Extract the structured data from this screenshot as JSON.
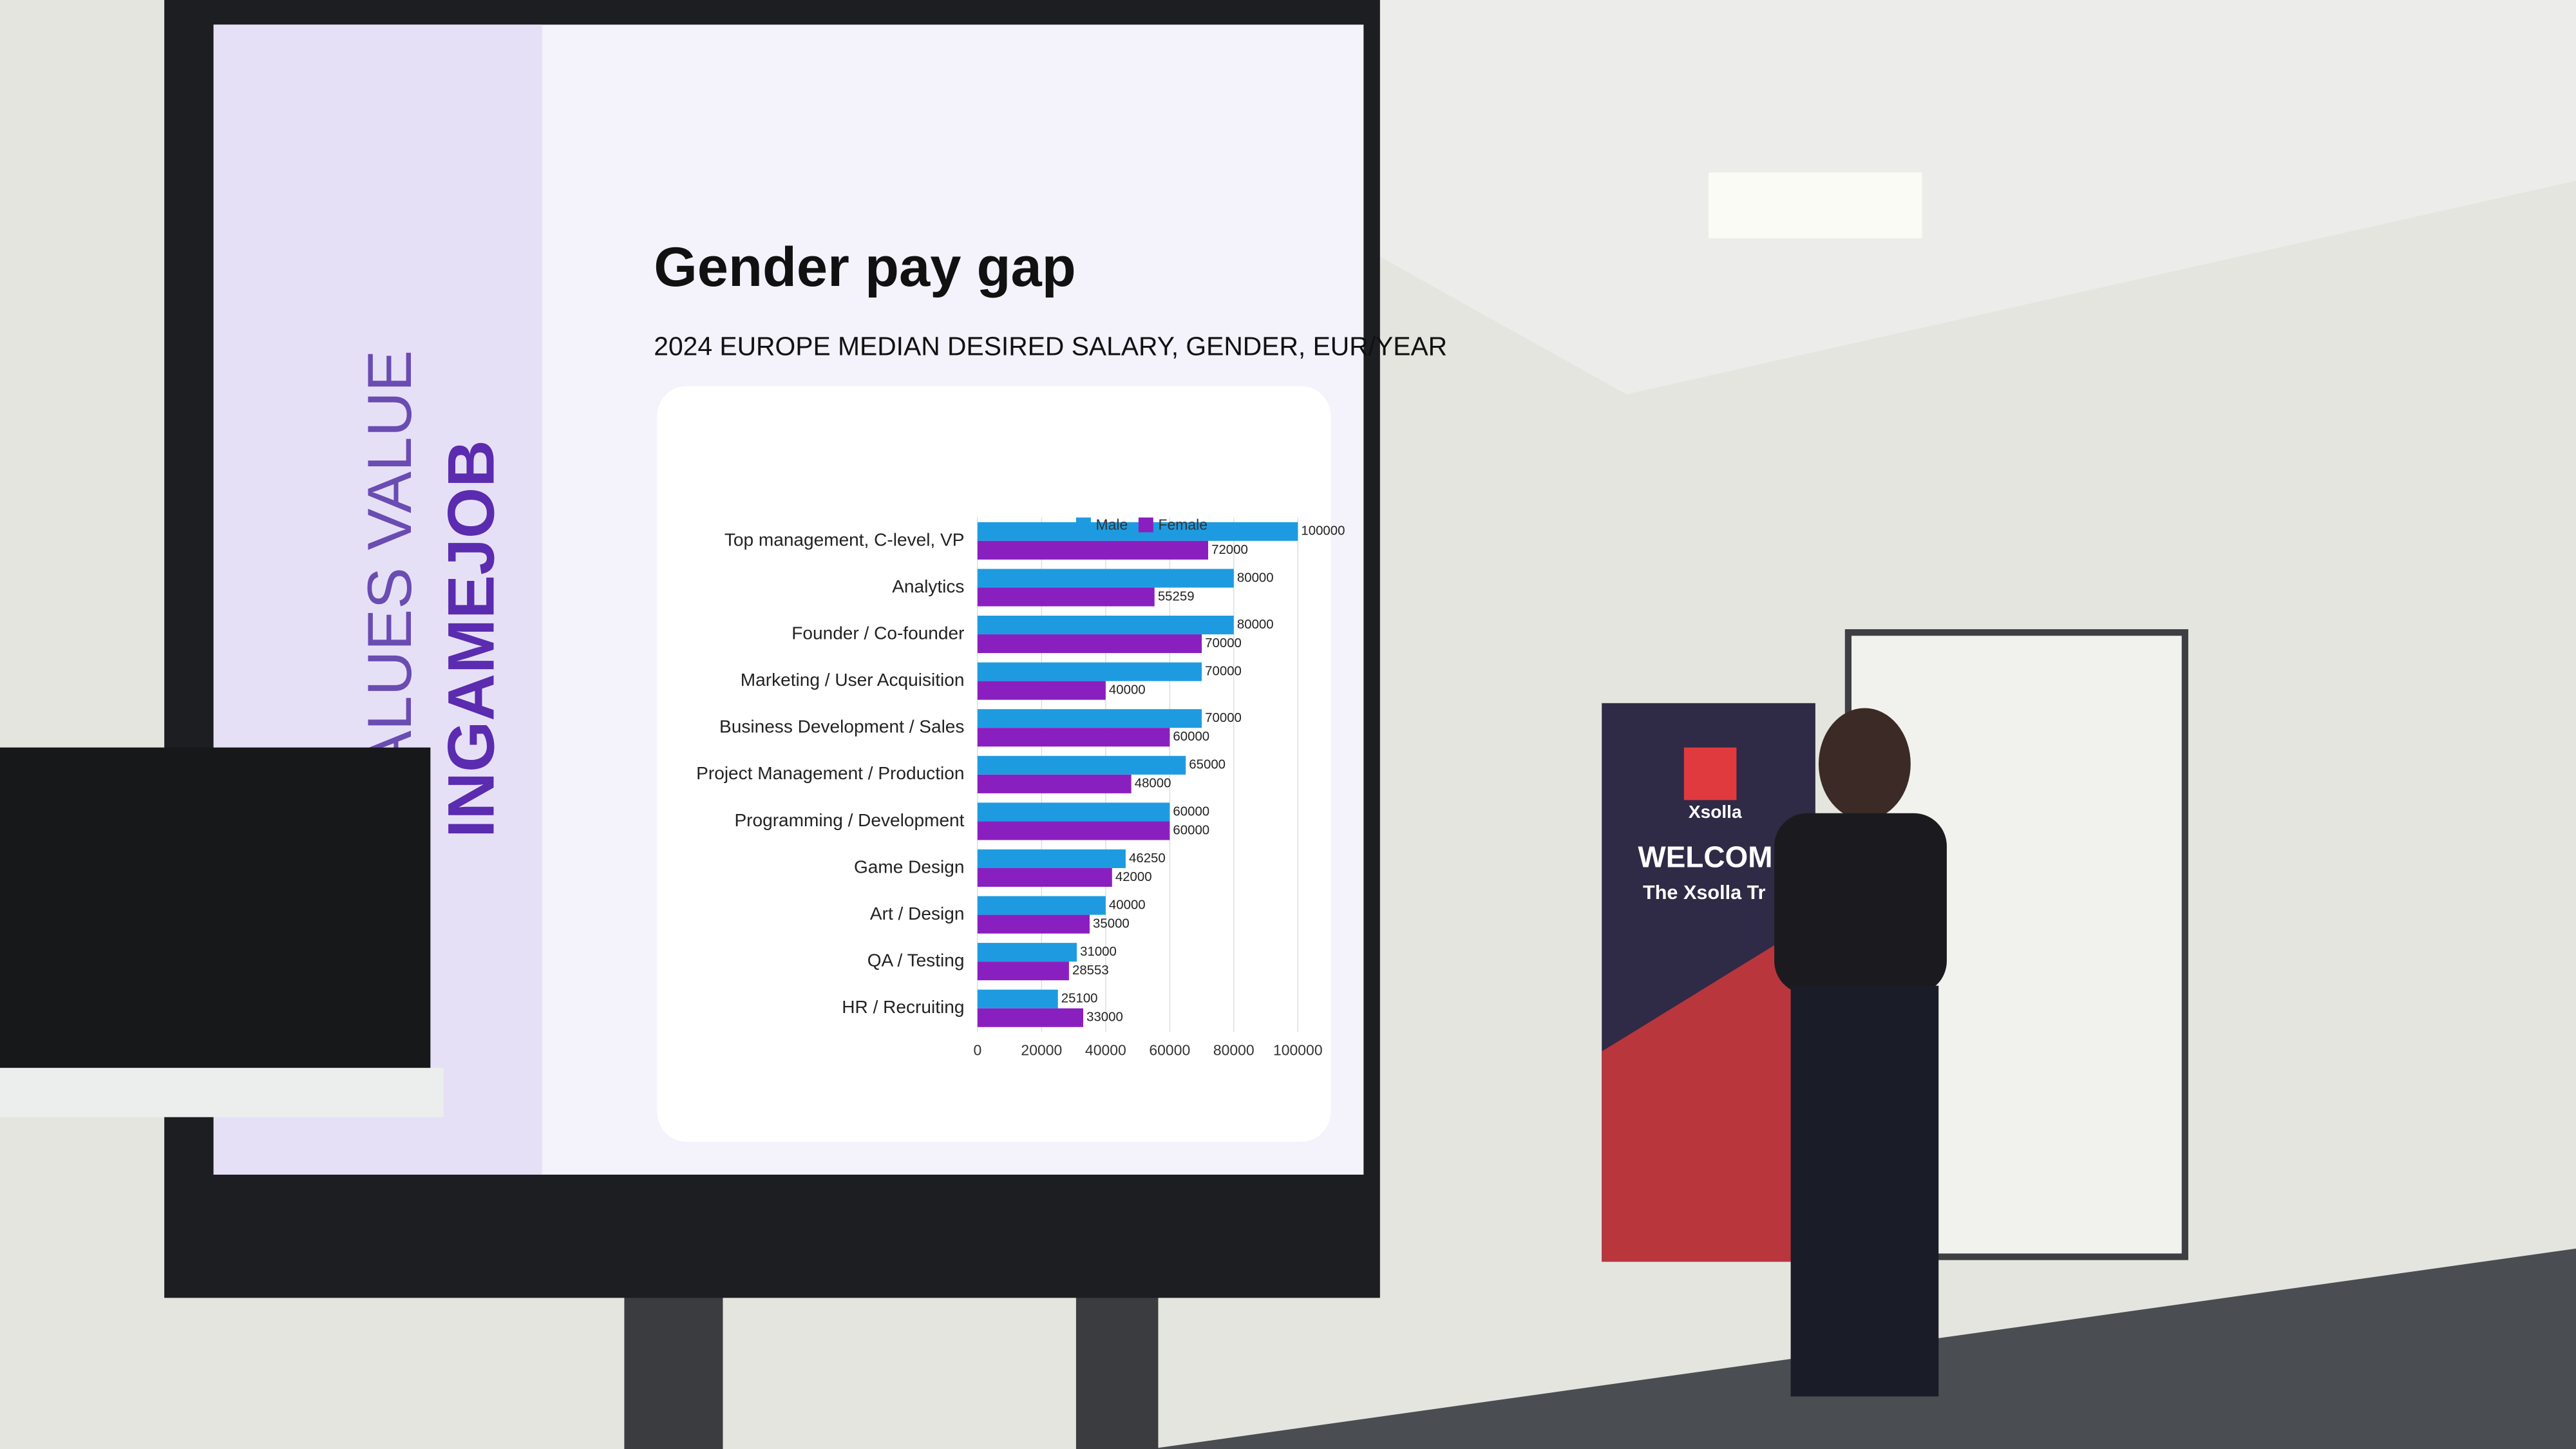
{
  "chart_data": {
    "type": "bar",
    "orientation": "horizontal",
    "title": "Gender pay gap",
    "subtitle": "2024 EUROPE MEDIAN DESIRED SALARY, GENDER, EUR/YEAR",
    "categories": [
      "Top management, C-level, VP",
      "Analytics",
      "Founder / Co-founder",
      "Marketing / User Acquisition",
      "Business Development / Sales",
      "Project Management / Production",
      "Programming / Development",
      "Game Design",
      "Art / Design",
      "QA / Testing",
      "HR / Recruiting"
    ],
    "series": [
      {
        "name": "Male",
        "color": "#1e9be0",
        "values": [
          100000,
          80000,
          80000,
          70000,
          70000,
          65000,
          60000,
          46250,
          40000,
          31000,
          25100
        ]
      },
      {
        "name": "Female",
        "color": "#8a1fc0",
        "values": [
          72000,
          55259,
          70000,
          40000,
          60000,
          48000,
          60000,
          42000,
          35000,
          28553,
          33000
        ]
      }
    ],
    "xlim": [
      0,
      100000
    ],
    "xticks": [
      0,
      20000,
      40000,
      60000,
      80000,
      100000
    ],
    "grid": true,
    "legend": "top"
  },
  "scene": {
    "slogan": "ALUES VALUE",
    "brand": "INGAMEJOB",
    "banner_brand": "Xsolla",
    "banner_title": "WELCOME T",
    "banner_subtitle": "The Xsolla Tr"
  }
}
